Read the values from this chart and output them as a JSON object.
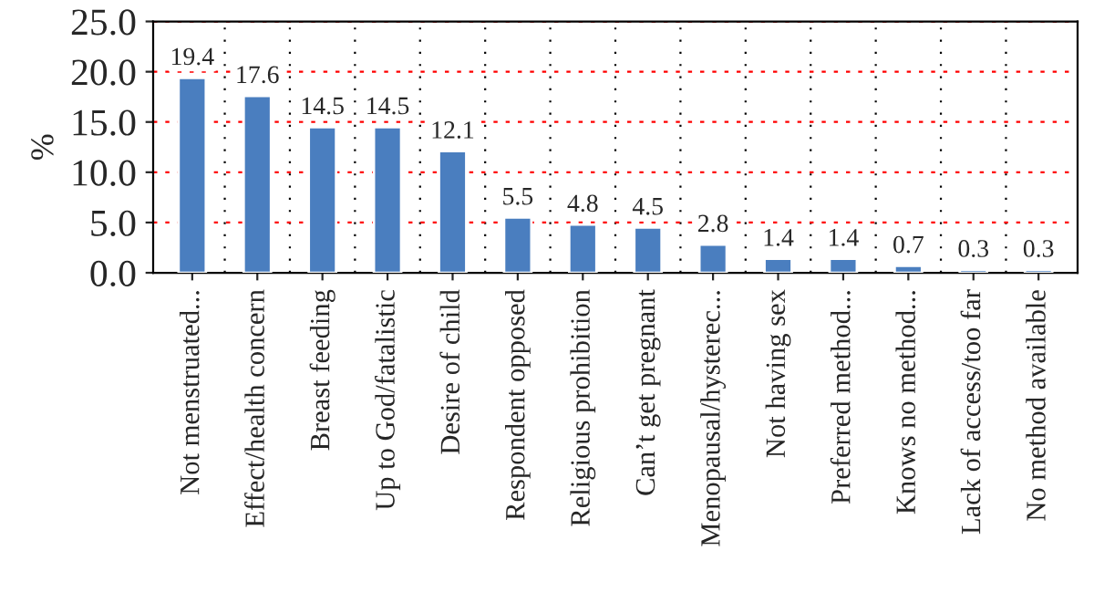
{
  "chart_data": {
    "type": "bar",
    "ylabel": "%",
    "categories": [
      "Not menstruated...",
      "Effect/health concern",
      "Breast feeding",
      "Up to God/fatalistic",
      "Desire of child",
      "Respondent opposed",
      "Religious prohibition",
      "Can’t get pregnant",
      "Menopausal/hysterec...",
      "Not having sex",
      "Preferred method...",
      "Knows no method...",
      "Lack of access/too far",
      "No method available"
    ],
    "values": [
      19.4,
      17.6,
      14.5,
      14.5,
      12.1,
      5.5,
      4.8,
      4.5,
      2.8,
      1.4,
      1.4,
      0.7,
      0.3,
      0.3
    ],
    "color": "#4a7ebf",
    "ylim": [
      0,
      25
    ],
    "yticks": [
      {
        "value": 0,
        "label": "0.0"
      },
      {
        "value": 5,
        "label": "5.0"
      },
      {
        "value": 10,
        "label": "10.0"
      },
      {
        "value": 15,
        "label": "15.0"
      },
      {
        "value": 20,
        "label": "20.0"
      },
      {
        "value": 25,
        "label": "25.0"
      }
    ],
    "grid": true,
    "data_labels": true
  }
}
